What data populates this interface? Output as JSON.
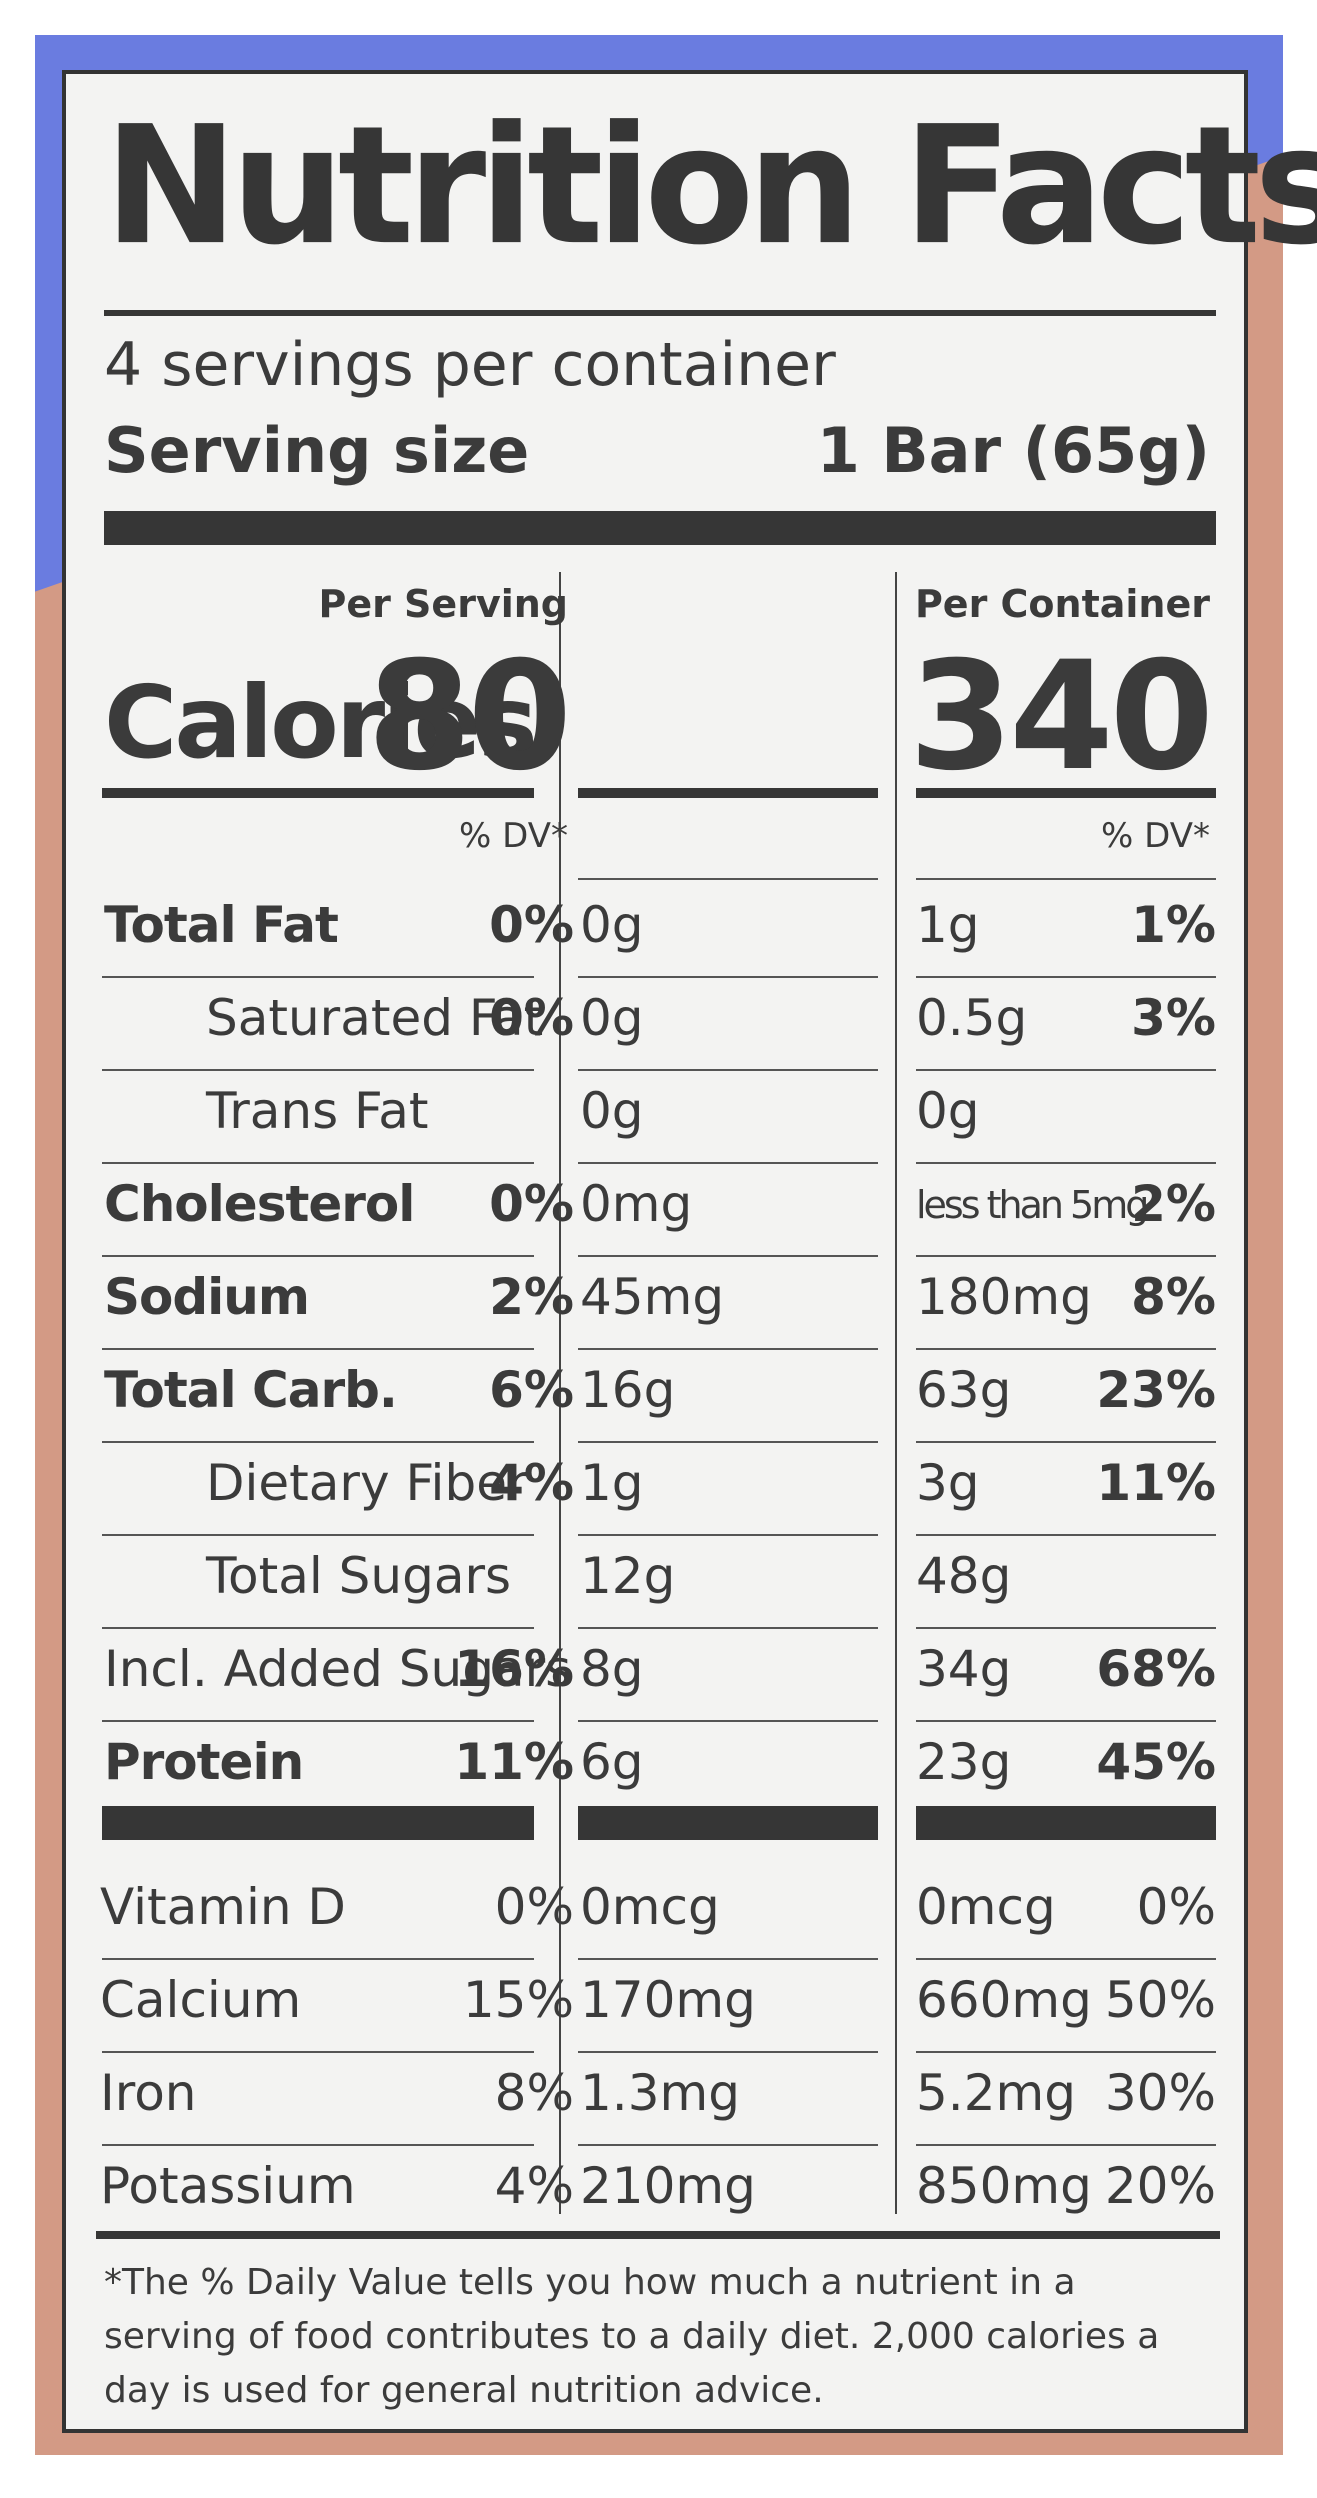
{
  "title": "Nutrition Facts",
  "servings_per_container": "4 servings per container",
  "serving_size": {
    "label": "Serving size",
    "value": "1 Bar (65g)"
  },
  "columns": {
    "per_serving": "Per Serving",
    "per_container": "Per Container"
  },
  "calories": {
    "label": "Calories",
    "per_serving": "80",
    "per_container": "340"
  },
  "dv_header": "% DV*",
  "nutrients": [
    {
      "name": "Total Fat",
      "bold": true,
      "indent": false,
      "serving_amount": "0g",
      "serving_dv": "0%",
      "container_amount": "1g",
      "container_dv": "1%"
    },
    {
      "name": "Saturated Fat",
      "bold": false,
      "indent": true,
      "serving_amount": "0g",
      "serving_dv": "0%",
      "container_amount": "0.5g",
      "container_dv": "3%"
    },
    {
      "name": "Trans Fat",
      "bold": false,
      "indent": true,
      "serving_amount": "0g",
      "serving_dv": "",
      "container_amount": "0g",
      "container_dv": ""
    },
    {
      "name": "Cholesterol",
      "bold": true,
      "indent": false,
      "serving_amount": "0mg",
      "serving_dv": "0%",
      "container_amount": "less than 5mg",
      "container_dv": "2%"
    },
    {
      "name": "Sodium",
      "bold": true,
      "indent": false,
      "serving_amount": "45mg",
      "serving_dv": "2%",
      "container_amount": "180mg",
      "container_dv": "8%"
    },
    {
      "name": "Total Carb.",
      "bold": true,
      "indent": false,
      "serving_amount": "16g",
      "serving_dv": "6%",
      "container_amount": "63g",
      "container_dv": "23%"
    },
    {
      "name": "Dietary Fiber",
      "bold": false,
      "indent": true,
      "serving_amount": "1g",
      "serving_dv": "4%",
      "container_amount": "3g",
      "container_dv": "11%"
    },
    {
      "name": "Total Sugars",
      "bold": false,
      "indent": true,
      "serving_amount": "12g",
      "serving_dv": "",
      "container_amount": "48g",
      "container_dv": ""
    },
    {
      "name": "Incl. Added Sugars",
      "bold": false,
      "indent": false,
      "serving_amount": "8g",
      "serving_dv": "16%",
      "container_amount": "34g",
      "container_dv": "68%"
    },
    {
      "name": "Protein",
      "bold": true,
      "indent": false,
      "serving_amount": "6g",
      "serving_dv": "11%",
      "container_amount": "23g",
      "container_dv": "45%"
    }
  ],
  "vitamins": [
    {
      "name": "Vitamin D",
      "serving_amount": "0mcg",
      "serving_dv": "0%",
      "container_amount": "0mcg",
      "container_dv": "0%"
    },
    {
      "name": "Calcium",
      "serving_amount": "170mg",
      "serving_dv": "15%",
      "container_amount": "660mg",
      "container_dv": "50%"
    },
    {
      "name": "Iron",
      "serving_amount": "1.3mg",
      "serving_dv": "8%",
      "container_amount": "5.2mg",
      "container_dv": "30%"
    },
    {
      "name": "Potassium",
      "serving_amount": "210mg",
      "serving_dv": "4%",
      "container_amount": "850mg",
      "container_dv": "20%"
    }
  ],
  "footnote": "*The % Daily Value tells you how much a nutrient in a serving of food contributes to a daily diet. 2,000 calories a day is used for general nutrition advice.",
  "colors": {
    "package_blue": "#6a7ce0",
    "package_tan": "#d39a85",
    "label_bg": "#f3f3f2",
    "ink": "#363636"
  }
}
